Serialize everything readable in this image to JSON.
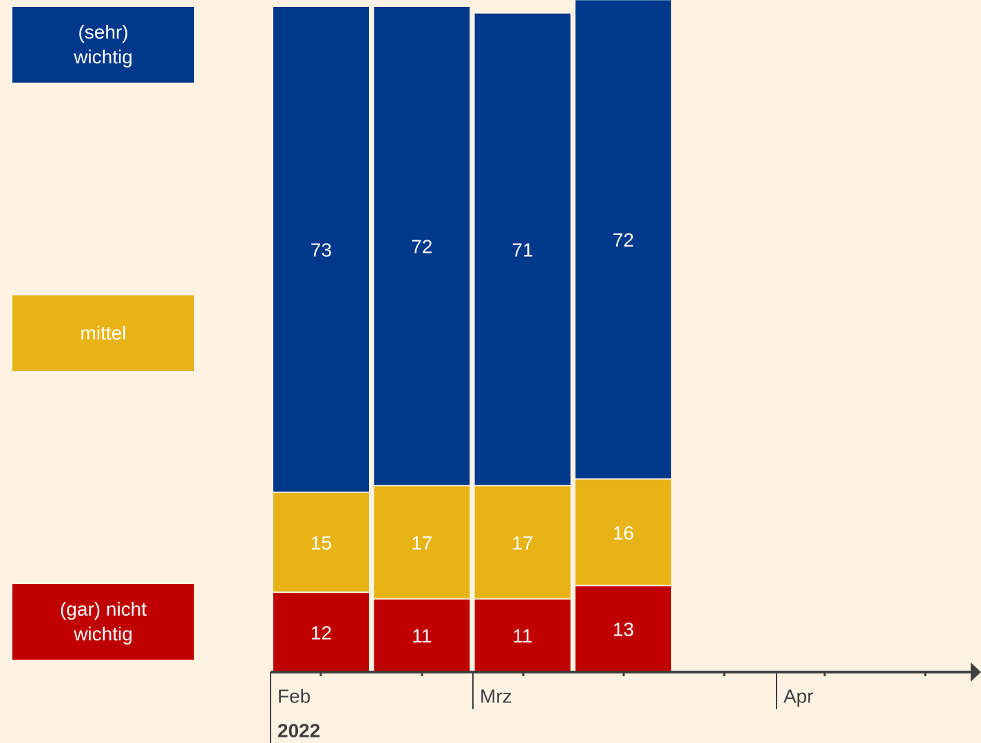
{
  "chart_data": {
    "type": "stacked_bar",
    "categories": [
      null,
      null,
      null,
      null
    ],
    "series": [
      {
        "name": "(gar) nicht wichtig",
        "color": "#c00000",
        "values": [
          12,
          11,
          11,
          13
        ]
      },
      {
        "name": "mittel",
        "color": "#e8b316",
        "values": [
          15,
          17,
          17,
          16
        ]
      },
      {
        "name": "(sehr) wichtig",
        "color": "#00388c",
        "values": [
          73,
          72,
          71,
          72
        ]
      }
    ],
    "ylim": [
      0,
      100
    ],
    "month_labels": [
      "Feb",
      "Mrz",
      "Apr"
    ],
    "year_label": "2022"
  }
}
